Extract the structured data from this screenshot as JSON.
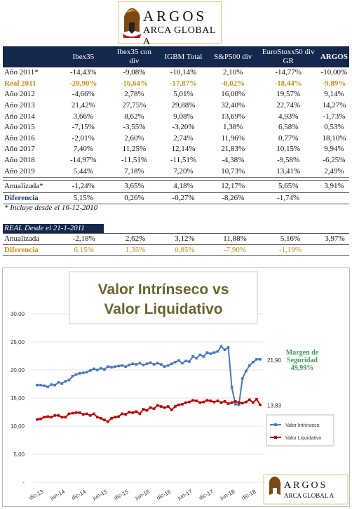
{
  "logo": {
    "title": "ARGOS",
    "subtitle": "ARCA GLOBAL A"
  },
  "table": {
    "headers": [
      "",
      "Ibex35",
      "Ibex35 con div",
      "IGBM Total",
      "S&P500 div",
      "EuroStoxx50 div GR",
      "ARGOS"
    ],
    "rows": [
      [
        "Año 2011*",
        "-14,43%",
        "-9,08%",
        "-10,14%",
        "2,10%",
        "-14,77%",
        "-10,00%"
      ],
      [
        "Real 2011",
        "-20,90%",
        "-16,64%",
        "-17,87%",
        "-0,02%",
        "-18,44%",
        "-9,89%"
      ],
      [
        "Año 2012",
        "-4,66%",
        "2,78%",
        "5,01%",
        "16,00%",
        "19,57%",
        "9,14%"
      ],
      [
        "Año 2013",
        "21,42%",
        "27,75%",
        "29,88%",
        "32,40%",
        "22,74%",
        "14,27%"
      ],
      [
        "Año 2014",
        "3,66%",
        "8,62%",
        "9,08%",
        "13,69%",
        "4,93%",
        "-1,73%"
      ],
      [
        "Año 2015",
        "-7,15%",
        "-3,55%",
        "-3,20%",
        "1,38%",
        "6,58%",
        "0,53%"
      ],
      [
        "Año 2016",
        "-2,01%",
        "2,60%",
        "2,74%",
        "11,96%",
        "0,77%",
        "18,10%"
      ],
      [
        "Año 2017",
        "7,40%",
        "11,25%",
        "12,14%",
        "21,83%",
        "10,15%",
        "9,94%"
      ],
      [
        "Año 2018",
        "-14,97%",
        "-11,51%",
        "-11,51%",
        "-4,38%",
        "-9,58%",
        "-6,25%"
      ],
      [
        "Año 2019",
        "5,44%",
        "7,18%",
        "7,20%",
        "10,73%",
        "13,41%",
        "2,49%"
      ]
    ],
    "anualizada": [
      "Anualizada*",
      "-1,24%",
      "3,65%",
      "4,18%",
      "12,17%",
      "5,65%",
      "3,91%"
    ],
    "diferencia": [
      "Diferencia",
      "5,15%",
      "0,26%",
      "-0,27%",
      "-8,26%",
      "-1,74%",
      ""
    ]
  },
  "note": "* Incluye desde el 16-12-2010",
  "real": {
    "header": "REAL Desde el 21-1-2011",
    "anualizada": [
      "Anualizada",
      "-2,18%",
      "2,62%",
      "3,12%",
      "11,88%",
      "5,16%",
      "3,97%"
    ],
    "diferencia": [
      "Diferencia",
      "6,15%",
      "1,35%",
      "0,85%",
      "-7,90%",
      "-1,19%",
      ""
    ]
  },
  "chart_data": {
    "type": "line",
    "title": "Valor Intrínseco vs Valor Liquidativo",
    "ylim": [
      0,
      30
    ],
    "yticks": [
      "-",
      "5,00",
      "10,00",
      "15,00",
      "20,00",
      "25,00",
      "30,00"
    ],
    "xticks": [
      "dic-13",
      "jun-14",
      "dic-14",
      "jun-15",
      "dic-15",
      "jun-16",
      "dic-16",
      "jun-17",
      "dic-17",
      "jun-18",
      "dic-18"
    ],
    "grid": true,
    "legend_position": "right",
    "annotation": {
      "line1": "Margen de",
      "line2": "Seguridad",
      "line3": "49,99%"
    },
    "last_labels": {
      "intrinseco": "21,90",
      "liquidativo": "13,83"
    },
    "colors": {
      "intrinseco": "#4a76c0",
      "liquidativo": "#c00000",
      "annotation": "#3f9a55",
      "title": "#6b6430"
    },
    "series": [
      {
        "name": "Valor Intrínseco",
        "values": [
          17.3,
          17.3,
          17.2,
          17.0,
          17.4,
          17.3,
          17.8,
          17.6,
          18.0,
          18.2,
          18.9,
          19.2,
          19.4,
          19.5,
          19.6,
          19.9,
          20.2,
          20.0,
          20.3,
          20.1,
          20.6,
          20.5,
          20.6,
          20.7,
          20.8,
          20.6,
          20.9,
          21.1,
          21.0,
          21.2,
          20.9,
          21.1,
          21.3,
          21.0,
          21.2,
          21.0,
          20.6,
          20.8,
          21.1,
          21.4,
          21.7,
          21.2,
          21.6,
          21.5,
          22.4,
          22.1,
          22.7,
          22.4,
          23.1,
          22.9,
          23.1,
          23.3,
          24.2,
          23.6,
          24.0,
          16.9,
          13.9,
          13.8,
          18.5,
          19.8,
          20.8,
          21.4,
          21.9,
          21.9
        ]
      },
      {
        "name": "Valor Liquidativo",
        "values": [
          11.2,
          11.3,
          11.6,
          11.7,
          11.6,
          11.9,
          11.9,
          11.6,
          11.6,
          12.2,
          12.3,
          12.4,
          12.4,
          12.1,
          12.2,
          11.9,
          12.2,
          11.6,
          11.4,
          11.1,
          10.8,
          11.4,
          11.6,
          11.7,
          12.2,
          12.1,
          12.5,
          12.4,
          12.6,
          12.2,
          13.0,
          12.8,
          13.3,
          13.1,
          13.7,
          13.5,
          13.3,
          13.5,
          12.9,
          13.5,
          13.8,
          13.9,
          14.2,
          14.3,
          14.6,
          14.5,
          14.2,
          14.3,
          14.6,
          14.5,
          14.3,
          14.5,
          14.2,
          14.4,
          14.0,
          14.2,
          14.4,
          14.2,
          14.1,
          14.3,
          14.7,
          14.2,
          14.8,
          13.8
        ]
      }
    ]
  }
}
